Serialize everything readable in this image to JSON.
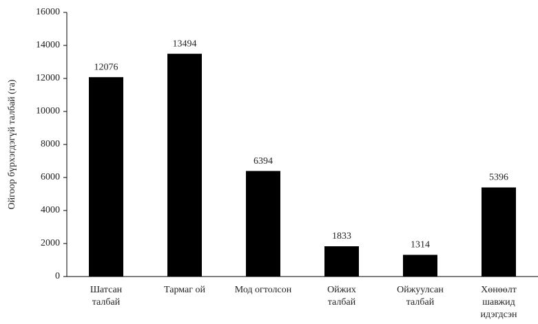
{
  "chart_data": {
    "type": "bar",
    "y_label": "Ойгоор бүрхэгдэгүй талбай (га)",
    "categories": [
      [
        "Шатсан",
        "талбай"
      ],
      [
        "Тармаг ой"
      ],
      [
        "Мод огтолсон"
      ],
      [
        "Ойжих",
        "талбай"
      ],
      [
        "Ойжуулсан",
        "талбай"
      ],
      [
        "Хөнөөлт",
        "шавжид",
        "идэгдсэн"
      ]
    ],
    "values": [
      12076,
      13494,
      6394,
      1833,
      1314,
      5396
    ],
    "color": "#000000",
    "ylim": [
      0,
      16000
    ],
    "yticks": [
      0,
      2000,
      4000,
      6000,
      8000,
      10000,
      12000,
      14000,
      16000
    ],
    "grid": false
  }
}
